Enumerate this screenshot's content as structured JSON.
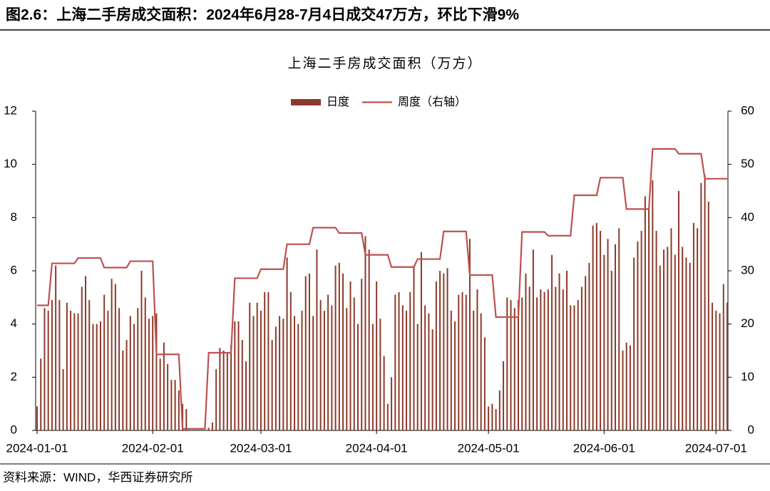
{
  "header": {
    "title": "图2.6：上海二手房成交面积：2024年6月28-7月4日成交47万方，环比下滑9%"
  },
  "chart_data": {
    "type": "bar_line",
    "title": "上海二手房成交面积（万方）",
    "x": [
      "2024-01-01",
      "2024-01-02",
      "2024-01-03",
      "2024-01-04",
      "2024-01-05",
      "2024-01-06",
      "2024-01-07",
      "2024-01-08",
      "2024-01-09",
      "2024-01-10",
      "2024-01-11",
      "2024-01-12",
      "2024-01-13",
      "2024-01-14",
      "2024-01-15",
      "2024-01-16",
      "2024-01-17",
      "2024-01-18",
      "2024-01-19",
      "2024-01-20",
      "2024-01-21",
      "2024-01-22",
      "2024-01-23",
      "2024-01-24",
      "2024-01-25",
      "2024-01-26",
      "2024-01-27",
      "2024-01-28",
      "2024-01-29",
      "2024-01-30",
      "2024-01-31",
      "2024-02-01",
      "2024-02-02",
      "2024-02-03",
      "2024-02-04",
      "2024-02-05",
      "2024-02-06",
      "2024-02-07",
      "2024-02-08",
      "2024-02-09",
      "2024-02-10",
      "2024-02-11",
      "2024-02-12",
      "2024-02-13",
      "2024-02-14",
      "2024-02-15",
      "2024-02-16",
      "2024-02-17",
      "2024-02-18",
      "2024-02-19",
      "2024-02-20",
      "2024-02-21",
      "2024-02-22",
      "2024-02-23",
      "2024-02-24",
      "2024-02-25",
      "2024-02-26",
      "2024-02-27",
      "2024-02-28",
      "2024-02-29",
      "2024-03-01",
      "2024-03-02",
      "2024-03-03",
      "2024-03-04",
      "2024-03-05",
      "2024-03-06",
      "2024-03-07",
      "2024-03-08",
      "2024-03-09",
      "2024-03-10",
      "2024-03-11",
      "2024-03-12",
      "2024-03-13",
      "2024-03-14",
      "2024-03-15",
      "2024-03-16",
      "2024-03-17",
      "2024-03-18",
      "2024-03-19",
      "2024-03-20",
      "2024-03-21",
      "2024-03-22",
      "2024-03-23",
      "2024-03-24",
      "2024-03-25",
      "2024-03-26",
      "2024-03-27",
      "2024-03-28",
      "2024-03-29",
      "2024-03-30",
      "2024-03-31",
      "2024-04-01",
      "2024-04-02",
      "2024-04-03",
      "2024-04-04",
      "2024-04-05",
      "2024-04-06",
      "2024-04-07",
      "2024-04-08",
      "2024-04-09",
      "2024-04-10",
      "2024-04-11",
      "2024-04-12",
      "2024-04-13",
      "2024-04-14",
      "2024-04-15",
      "2024-04-16",
      "2024-04-17",
      "2024-04-18",
      "2024-04-19",
      "2024-04-20",
      "2024-04-21",
      "2024-04-22",
      "2024-04-23",
      "2024-04-24",
      "2024-04-25",
      "2024-04-26",
      "2024-04-27",
      "2024-04-28",
      "2024-04-29",
      "2024-04-30",
      "2024-05-01",
      "2024-05-02",
      "2024-05-03",
      "2024-05-04",
      "2024-05-05",
      "2024-05-06",
      "2024-05-07",
      "2024-05-08",
      "2024-05-09",
      "2024-05-10",
      "2024-05-11",
      "2024-05-12",
      "2024-05-13",
      "2024-05-14",
      "2024-05-15",
      "2024-05-16",
      "2024-05-17",
      "2024-05-18",
      "2024-05-19",
      "2024-05-20",
      "2024-05-21",
      "2024-05-22",
      "2024-05-23",
      "2024-05-24",
      "2024-05-25",
      "2024-05-26",
      "2024-05-27",
      "2024-05-28",
      "2024-05-29",
      "2024-05-30",
      "2024-05-31",
      "2024-06-01",
      "2024-06-02",
      "2024-06-03",
      "2024-06-04",
      "2024-06-05",
      "2024-06-06",
      "2024-06-07",
      "2024-06-08",
      "2024-06-09",
      "2024-06-10",
      "2024-06-11",
      "2024-06-12",
      "2024-06-13",
      "2024-06-14",
      "2024-06-15",
      "2024-06-16",
      "2024-06-17",
      "2024-06-18",
      "2024-06-19",
      "2024-06-20",
      "2024-06-21",
      "2024-06-22",
      "2024-06-23",
      "2024-06-24",
      "2024-06-25",
      "2024-06-26",
      "2024-06-27",
      "2024-06-28",
      "2024-06-29",
      "2024-06-30",
      "2024-07-01",
      "2024-07-02",
      "2024-07-03",
      "2024-07-04"
    ],
    "series": [
      {
        "name": "日度",
        "color": "#8b3a2b",
        "type": "bar",
        "values": [
          0.9,
          2.7,
          4.6,
          4.5,
          4.9,
          6.2,
          4.9,
          2.3,
          4.8,
          4.5,
          4.4,
          4.4,
          5.4,
          5.8,
          4.9,
          4.0,
          4.0,
          4.1,
          5.1,
          4.5,
          5.7,
          5.5,
          4.6,
          3.0,
          3.4,
          4.3,
          4.0,
          4.6,
          6.0,
          5.0,
          4.2,
          4.3,
          4.4,
          2.7,
          3.3,
          2.5,
          1.9,
          1.9,
          1.5,
          1.0,
          0.8,
          0,
          0,
          0,
          0,
          0,
          0.1,
          0.3,
          2.3,
          3.1,
          3.0,
          2.9,
          3.2,
          4.1,
          4.1,
          3.4,
          2.6,
          4.8,
          4.3,
          4.8,
          4.5,
          5.2,
          5.2,
          3.4,
          3.9,
          4.3,
          4.2,
          6.5,
          5.2,
          4.3,
          4.0,
          4.5,
          5.8,
          5.9,
          4.3,
          6.8,
          4.9,
          4.5,
          5.1,
          4.7,
          6.2,
          6.3,
          5.9,
          4.6,
          5.6,
          5.0,
          4.0,
          5.7,
          7.3,
          6.8,
          4.0,
          5.6,
          4.2,
          2.8,
          1.0,
          2.0,
          5.1,
          5.2,
          4.7,
          4.5,
          5.2,
          6.2,
          4.0,
          6.7,
          4.7,
          4.4,
          3.8,
          5.6,
          6.0,
          5.9,
          6.1,
          4.5,
          4.1,
          5.1,
          5.2,
          5.1,
          7.2,
          4.5,
          5.3,
          4.4,
          3.5,
          0.9,
          1.0,
          0.8,
          1.5,
          2.6,
          5.0,
          4.9,
          4.6,
          4.9,
          5.0,
          5.9,
          5.4,
          6.8,
          5.0,
          5.3,
          5.2,
          5.3,
          6.6,
          5.4,
          5.9,
          5.3,
          6.0,
          4.7,
          4.7,
          4.9,
          5.4,
          5.8,
          6.3,
          7.7,
          7.8,
          7.5,
          6.6,
          7.2,
          6.0,
          7.0,
          7.6,
          3.0,
          3.3,
          3.2,
          6.5,
          7.1,
          7.5,
          8.8,
          8.3,
          9.4,
          7.5,
          6.2,
          6.8,
          6.9,
          7.6,
          6.6,
          9.0,
          6.9,
          6.5,
          6.3,
          7.8,
          7.6,
          9.3,
          9.6,
          8.6,
          4.8,
          4.5,
          4.4,
          5.5,
          4.8
        ]
      },
      {
        "name": "周度（右轴）",
        "color": "#c0504d",
        "type": "line",
        "axis": "y2",
        "values": [
          23.5,
          23.5,
          23.5,
          23.5,
          31.4,
          31.4,
          31.4,
          31.4,
          31.4,
          31.4,
          31.4,
          32.4,
          32.4,
          32.4,
          32.4,
          32.4,
          32.4,
          32.4,
          30.6,
          30.6,
          30.6,
          30.6,
          30.6,
          30.6,
          30.6,
          31.8,
          31.8,
          31.8,
          31.8,
          31.8,
          31.8,
          31.8,
          14.3,
          14.3,
          14.3,
          14.3,
          14.3,
          14.3,
          14.3,
          0.3,
          0.3,
          0.3,
          0.3,
          0.3,
          0.3,
          0.3,
          14.6,
          14.6,
          14.6,
          14.6,
          14.6,
          14.6,
          14.6,
          28.6,
          28.6,
          28.6,
          28.6,
          28.6,
          28.6,
          28.6,
          30.3,
          30.3,
          30.3,
          30.3,
          30.3,
          30.3,
          30.3,
          35.0,
          35.0,
          35.0,
          35.0,
          35.0,
          35.0,
          35.0,
          38.1,
          38.1,
          38.1,
          38.1,
          38.1,
          38.1,
          38.1,
          37.1,
          37.1,
          37.1,
          37.1,
          37.1,
          37.1,
          37.1,
          33.0,
          33.0,
          33.0,
          33.0,
          33.0,
          33.0,
          33.0,
          30.7,
          30.7,
          30.7,
          30.7,
          30.7,
          30.7,
          30.7,
          32.2,
          32.2,
          32.2,
          32.2,
          32.2,
          32.2,
          32.2,
          37.4,
          37.4,
          37.4,
          37.4,
          37.4,
          37.4,
          37.4,
          29.2,
          29.2,
          29.2,
          29.2,
          29.2,
          29.2,
          29.2,
          21.3,
          21.3,
          21.3,
          21.3,
          21.3,
          21.3,
          21.3,
          37.3,
          37.3,
          37.3,
          37.3,
          37.3,
          37.3,
          37.3,
          36.6,
          36.6,
          36.6,
          36.6,
          36.6,
          36.6,
          36.6,
          44.2,
          44.2,
          44.2,
          44.2,
          44.2,
          44.2,
          44.2,
          47.5,
          47.5,
          47.5,
          47.5,
          47.5,
          47.5,
          47.5,
          41.6,
          41.6,
          41.6,
          41.6,
          41.6,
          41.6,
          41.6,
          52.9,
          52.9,
          52.9,
          52.9,
          52.9,
          52.9,
          52.9,
          52.0,
          52.0,
          52.0,
          52.0,
          52.0,
          52.0,
          52.0,
          47.3,
          47.3,
          47.3,
          47.3,
          47.3,
          47.3,
          47.3
        ]
      }
    ],
    "xlim": [
      "2024-01-01",
      "2024-07-04"
    ],
    "xticks": [
      "2024-01-01",
      "2024-02-01",
      "2024-03-01",
      "2024-04-01",
      "2024-05-01",
      "2024-06-01",
      "2024-07-01"
    ],
    "ylim": [
      0,
      12
    ],
    "yticks": [
      0,
      2,
      4,
      6,
      8,
      10,
      12
    ],
    "y2lim": [
      0,
      60
    ],
    "y2ticks": [
      0,
      10,
      20,
      30,
      40,
      50,
      60
    ],
    "legend": "top",
    "grid": false
  },
  "footer": {
    "source": "资料来源：WIND，华西证券研究所"
  }
}
